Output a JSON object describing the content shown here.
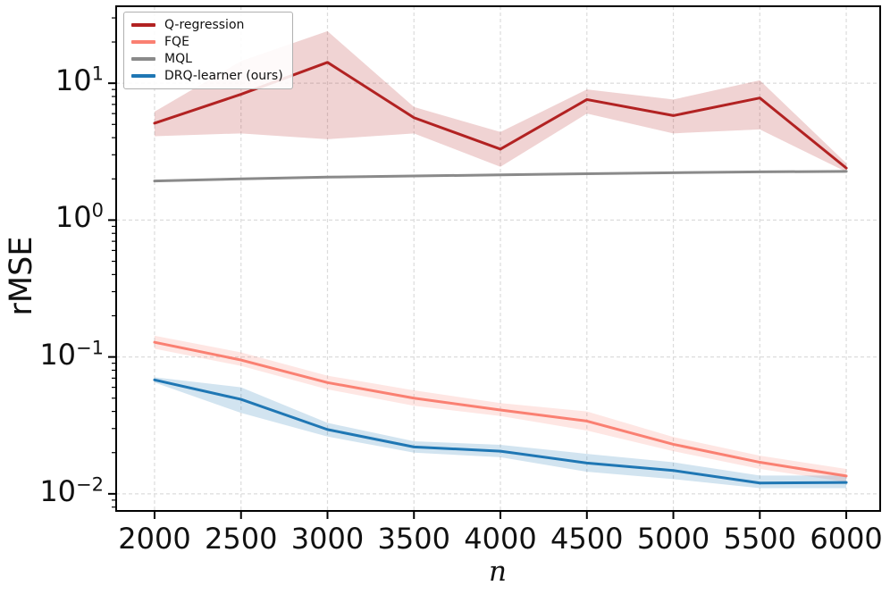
{
  "chart_data": {
    "type": "line",
    "title": "",
    "xlabel": "n",
    "ylabel": "rMSE",
    "yscale": "log",
    "grid": true,
    "legend_position": "upper-left",
    "x": [
      2000,
      2500,
      3000,
      3500,
      4000,
      4500,
      5000,
      5500,
      6000
    ],
    "xticks": [
      2000,
      2500,
      3000,
      3500,
      4000,
      4500,
      5000,
      5500,
      6000
    ],
    "ytick_exponents": [
      1,
      0,
      -1,
      -2
    ],
    "xlim": [
      1778,
      6196
    ],
    "ylim": [
      0.0075,
      36.5
    ],
    "series": [
      {
        "name": "Q-regression",
        "color": "#b22222",
        "values": [
          5.1,
          8.3,
          14.2,
          5.6,
          3.3,
          7.6,
          5.8,
          7.8,
          2.4
        ],
        "band_lo": [
          4.1,
          4.3,
          3.9,
          4.3,
          2.45,
          6.0,
          4.3,
          4.6,
          2.25
        ],
        "band_hi": [
          6.2,
          14.5,
          24.0,
          6.7,
          4.4,
          9.0,
          7.6,
          10.5,
          2.6
        ]
      },
      {
        "name": "FQE",
        "color": "#fa8072",
        "values": [
          0.128,
          0.095,
          0.065,
          0.05,
          0.041,
          0.034,
          0.023,
          0.017,
          0.0135
        ],
        "band_lo": [
          0.115,
          0.086,
          0.058,
          0.044,
          0.037,
          0.029,
          0.0205,
          0.0152,
          0.0122
        ],
        "band_hi": [
          0.143,
          0.108,
          0.073,
          0.057,
          0.046,
          0.04,
          0.026,
          0.019,
          0.0152
        ]
      },
      {
        "name": "MQL",
        "color": "#8a8a8a",
        "values": [
          1.93,
          2.0,
          2.06,
          2.1,
          2.14,
          2.18,
          2.22,
          2.25,
          2.27
        ],
        "band_lo": [],
        "band_hi": []
      },
      {
        "name": "DRQ-learner (ours)",
        "color": "#1f77b4",
        "values": [
          0.068,
          0.049,
          0.0295,
          0.022,
          0.0205,
          0.0168,
          0.0148,
          0.012,
          0.0121
        ],
        "band_lo": [
          0.065,
          0.039,
          0.0262,
          0.02,
          0.0185,
          0.0145,
          0.0128,
          0.011,
          0.011
        ],
        "band_hi": [
          0.071,
          0.06,
          0.033,
          0.0242,
          0.0228,
          0.0196,
          0.017,
          0.0136,
          0.0136
        ]
      }
    ],
    "colors": {
      "axis": "#000000",
      "grid": "#dcdcdc",
      "background": "#ffffff",
      "band_opacity": 0.2
    }
  }
}
